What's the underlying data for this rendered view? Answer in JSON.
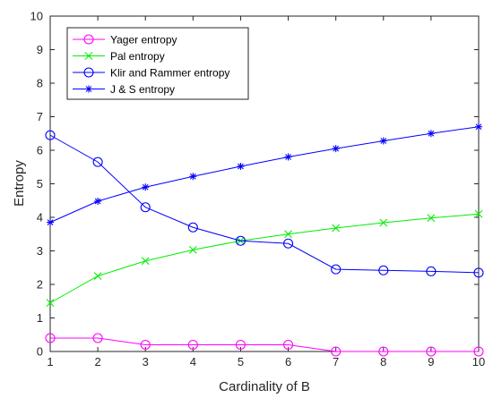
{
  "chart_data": {
    "type": "line",
    "xlabel": "Cardinality of B",
    "ylabel": "Entropy",
    "xlim": [
      1,
      10
    ],
    "ylim": [
      0,
      10
    ],
    "x": [
      1,
      2,
      3,
      4,
      5,
      6,
      7,
      8,
      9,
      10
    ],
    "xticks": [
      "1",
      "2",
      "3",
      "4",
      "5",
      "6",
      "7",
      "8",
      "9",
      "10"
    ],
    "yticks": [
      "0",
      "1",
      "2",
      "3",
      "4",
      "5",
      "6",
      "7",
      "8",
      "9",
      "10"
    ],
    "grid": false,
    "legend_position": "top-left",
    "series": [
      {
        "name": "Yager entropy",
        "color": "#ff00ff",
        "marker": "circle",
        "values": [
          0.4,
          0.4,
          0.2,
          0.2,
          0.2,
          0.2,
          0.0,
          0.0,
          0.0,
          0.0
        ]
      },
      {
        "name": "Pal entropy",
        "color": "#00ee00",
        "marker": "x",
        "values": [
          1.45,
          2.25,
          2.7,
          3.03,
          3.3,
          3.5,
          3.68,
          3.84,
          3.98,
          4.1
        ]
      },
      {
        "name": "Klir and Rammer entropy",
        "color": "#0000ff",
        "marker": "circle",
        "values": [
          6.45,
          5.65,
          4.3,
          3.7,
          3.3,
          3.22,
          2.45,
          2.42,
          2.39,
          2.35
        ]
      },
      {
        "name": "J & S entropy",
        "color": "#0000ff",
        "marker": "star",
        "values": [
          3.85,
          4.48,
          4.9,
          5.22,
          5.52,
          5.8,
          6.05,
          6.28,
          6.5,
          6.7
        ]
      }
    ]
  }
}
